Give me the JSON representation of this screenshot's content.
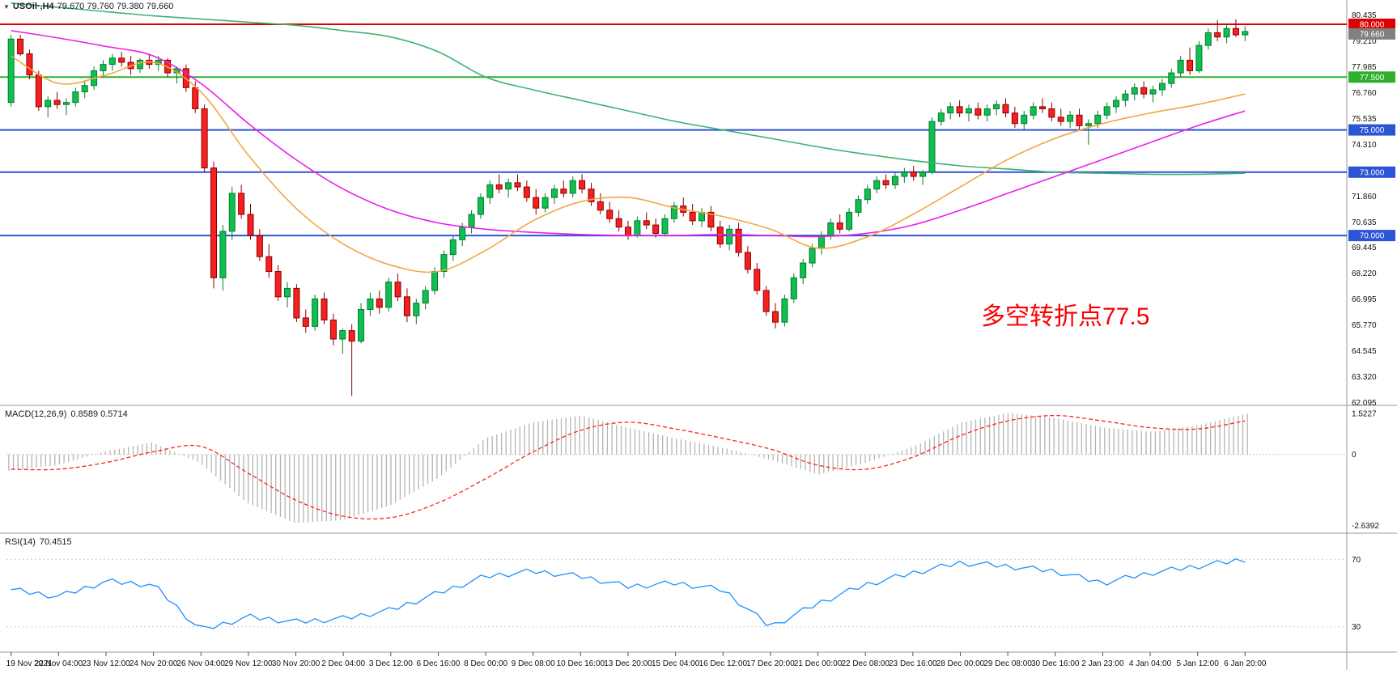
{
  "toolbar": {
    "dropdown_icon": "▼",
    "symbol": "USOil·,H4",
    "ohlc": "79.670 79.760 79.380 79.660"
  },
  "annotation": {
    "text": "多空转折点77.5",
    "color": "#fa0000"
  },
  "chart_data": {
    "type": "candlestick",
    "symbol": "USOil",
    "timeframe": "H4",
    "ylim": [
      62.0,
      81.15
    ],
    "y_ticks": [
      "80.435",
      "79.210",
      "77.985",
      "76.760",
      "75.535",
      "74.310",
      "73.085",
      "71.860",
      "70.635",
      "69.445",
      "68.220",
      "66.995",
      "65.770",
      "64.545",
      "63.320",
      "62.095"
    ],
    "x_labels": [
      "19 Nov 2021",
      "22 Nov 04:00",
      "23 Nov 12:00",
      "24 Nov 20:00",
      "26 Nov 04:00",
      "29 Nov 12:00",
      "30 Nov 20:00",
      "2 Dec 04:00",
      "3 Dec 12:00",
      "6 Dec 16:00",
      "8 Dec 00:00",
      "9 Dec 08:00",
      "10 Dec 16:00",
      "13 Dec 20:00",
      "15 Dec 04:00",
      "16 Dec 12:00",
      "17 Dec 20:00",
      "21 Dec 00:00",
      "22 Dec 08:00",
      "23 Dec 16:00",
      "28 Dec 00:00",
      "29 Dec 08:00",
      "30 Dec 16:00",
      "2 Jan 23:00",
      "4 Jan 04:00",
      "5 Jan 12:00",
      "6 Jan 20:00"
    ],
    "colors": {
      "up_body": "#0fbf4f",
      "up_edge": "#067a30",
      "down_body": "#f62020",
      "down_edge": "#8b0000",
      "ma_slow": "#3cb371",
      "ma_mid": "#ee1ce8",
      "ma_fast": "#f5a540",
      "macd_hist": "#b4b4b4",
      "macd_signal": "#ff2222",
      "rsi_line": "#1e90ff"
    },
    "horizontal_levels": [
      {
        "value": 80.0,
        "label": "80.000",
        "color": "#dd0000"
      },
      {
        "value": 77.5,
        "label": "77.500",
        "color": "#2eaf2e"
      },
      {
        "value": 75.0,
        "label": "75.000",
        "color": "#2b55d5"
      },
      {
        "value": 73.0,
        "label": "73.000",
        "color": "#2b55d5"
      },
      {
        "value": 70.0,
        "label": "70.000",
        "color": "#2b55d5"
      }
    ],
    "current_price": {
      "value": 79.66,
      "label": "79.660",
      "color": "#808080"
    },
    "candles_ohlc": [
      [
        76.3,
        79.5,
        76.1,
        79.3
      ],
      [
        79.3,
        79.5,
        78.5,
        78.6
      ],
      [
        78.6,
        78.8,
        77.4,
        77.6
      ],
      [
        77.6,
        77.8,
        75.9,
        76.1
      ],
      [
        76.1,
        76.6,
        75.6,
        76.4
      ],
      [
        76.4,
        76.8,
        76.0,
        76.2
      ],
      [
        76.2,
        76.5,
        75.7,
        76.3
      ],
      [
        76.3,
        77.0,
        76.1,
        76.8
      ],
      [
        76.8,
        77.3,
        76.5,
        77.1
      ],
      [
        77.1,
        78.0,
        76.9,
        77.8
      ],
      [
        77.8,
        78.3,
        77.5,
        78.1
      ],
      [
        78.1,
        78.6,
        77.8,
        78.4
      ],
      [
        78.4,
        78.7,
        78.0,
        78.2
      ],
      [
        78.2,
        78.5,
        77.6,
        77.9
      ],
      [
        77.9,
        78.4,
        77.7,
        78.3
      ],
      [
        78.3,
        78.6,
        77.9,
        78.1
      ],
      [
        78.1,
        78.5,
        77.8,
        78.3
      ],
      [
        78.3,
        78.4,
        77.5,
        77.7
      ],
      [
        77.7,
        78.0,
        77.2,
        77.9
      ],
      [
        77.9,
        78.1,
        76.8,
        77.0
      ],
      [
        77.0,
        77.3,
        75.8,
        76.0
      ],
      [
        76.0,
        76.2,
        73.0,
        73.2
      ],
      [
        73.2,
        73.5,
        67.5,
        68.0
      ],
      [
        68.0,
        70.5,
        67.4,
        70.2
      ],
      [
        70.2,
        72.3,
        69.8,
        72.0
      ],
      [
        72.0,
        72.4,
        70.8,
        71.0
      ],
      [
        71.0,
        71.5,
        69.8,
        70.0
      ],
      [
        70.0,
        70.3,
        68.8,
        69.0
      ],
      [
        69.0,
        69.6,
        68.0,
        68.3
      ],
      [
        68.3,
        68.6,
        66.9,
        67.1
      ],
      [
        67.1,
        67.8,
        66.6,
        67.5
      ],
      [
        67.5,
        67.7,
        65.9,
        66.1
      ],
      [
        66.1,
        66.5,
        65.4,
        65.7
      ],
      [
        65.7,
        67.2,
        65.5,
        67.0
      ],
      [
        67.0,
        67.3,
        65.8,
        66.0
      ],
      [
        66.0,
        66.3,
        64.8,
        65.1
      ],
      [
        65.1,
        65.6,
        64.4,
        65.5
      ],
      [
        65.5,
        65.8,
        62.4,
        65.0
      ],
      [
        65.0,
        66.8,
        64.9,
        66.5
      ],
      [
        66.5,
        67.3,
        66.2,
        67.0
      ],
      [
        67.0,
        67.4,
        66.3,
        66.6
      ],
      [
        66.6,
        68.0,
        66.4,
        67.8
      ],
      [
        67.8,
        68.2,
        66.9,
        67.1
      ],
      [
        67.1,
        67.5,
        65.9,
        66.2
      ],
      [
        66.2,
        67.0,
        65.8,
        66.8
      ],
      [
        66.8,
        67.6,
        66.5,
        67.4
      ],
      [
        67.4,
        68.5,
        67.2,
        68.3
      ],
      [
        68.3,
        69.3,
        68.0,
        69.1
      ],
      [
        69.1,
        70.0,
        68.8,
        69.8
      ],
      [
        69.8,
        70.6,
        69.5,
        70.4
      ],
      [
        70.4,
        71.2,
        70.1,
        71.0
      ],
      [
        71.0,
        72.0,
        70.8,
        71.8
      ],
      [
        71.8,
        72.6,
        71.5,
        72.4
      ],
      [
        72.4,
        72.9,
        72.0,
        72.2
      ],
      [
        72.2,
        72.7,
        71.8,
        72.5
      ],
      [
        72.5,
        72.9,
        72.1,
        72.3
      ],
      [
        72.3,
        72.6,
        71.6,
        71.8
      ],
      [
        71.8,
        72.2,
        71.0,
        71.3
      ],
      [
        71.3,
        72.0,
        71.1,
        71.8
      ],
      [
        71.8,
        72.4,
        71.5,
        72.2
      ],
      [
        72.2,
        72.6,
        71.8,
        72.0
      ],
      [
        72.0,
        72.8,
        71.8,
        72.6
      ],
      [
        72.6,
        72.9,
        72.0,
        72.2
      ],
      [
        72.2,
        72.5,
        71.4,
        71.6
      ],
      [
        71.6,
        72.0,
        71.0,
        71.2
      ],
      [
        71.2,
        71.6,
        70.6,
        70.8
      ],
      [
        70.8,
        71.2,
        70.2,
        70.4
      ],
      [
        70.4,
        70.7,
        69.8,
        70.0
      ],
      [
        70.0,
        70.9,
        69.9,
        70.7
      ],
      [
        70.7,
        71.1,
        70.3,
        70.5
      ],
      [
        70.5,
        70.8,
        69.9,
        70.1
      ],
      [
        70.1,
        71.0,
        70.0,
        70.8
      ],
      [
        70.8,
        71.6,
        70.6,
        71.4
      ],
      [
        71.4,
        71.8,
        70.9,
        71.1
      ],
      [
        71.1,
        71.5,
        70.5,
        70.7
      ],
      [
        70.7,
        71.3,
        70.4,
        71.1
      ],
      [
        71.1,
        71.4,
        70.2,
        70.4
      ],
      [
        70.4,
        70.7,
        69.4,
        69.6
      ],
      [
        69.6,
        70.5,
        69.3,
        70.3
      ],
      [
        70.3,
        70.6,
        69.0,
        69.2
      ],
      [
        69.2,
        69.5,
        68.2,
        68.4
      ],
      [
        68.4,
        68.7,
        67.2,
        67.4
      ],
      [
        67.4,
        67.6,
        66.2,
        66.4
      ],
      [
        66.4,
        66.8,
        65.6,
        65.9
      ],
      [
        65.9,
        67.2,
        65.7,
        67.0
      ],
      [
        67.0,
        68.2,
        66.8,
        68.0
      ],
      [
        68.0,
        68.9,
        67.7,
        68.7
      ],
      [
        68.7,
        69.6,
        68.5,
        69.4
      ],
      [
        69.4,
        70.2,
        69.1,
        70.0
      ],
      [
        70.0,
        70.8,
        69.8,
        70.6
      ],
      [
        70.6,
        71.0,
        70.1,
        70.3
      ],
      [
        70.3,
        71.3,
        70.2,
        71.1
      ],
      [
        71.1,
        71.9,
        70.9,
        71.7
      ],
      [
        71.7,
        72.4,
        71.5,
        72.2
      ],
      [
        72.2,
        72.8,
        72.0,
        72.6
      ],
      [
        72.6,
        72.9,
        72.2,
        72.4
      ],
      [
        72.4,
        73.0,
        72.2,
        72.8
      ],
      [
        72.8,
        73.2,
        72.5,
        73.0
      ],
      [
        73.0,
        73.3,
        72.6,
        72.8
      ],
      [
        72.8,
        73.1,
        72.4,
        73.0
      ],
      [
        73.0,
        75.6,
        72.9,
        75.4
      ],
      [
        75.4,
        76.0,
        75.2,
        75.8
      ],
      [
        75.8,
        76.3,
        75.5,
        76.1
      ],
      [
        76.1,
        76.4,
        75.6,
        75.8
      ],
      [
        75.8,
        76.2,
        75.4,
        76.0
      ],
      [
        76.0,
        76.3,
        75.5,
        75.7
      ],
      [
        75.7,
        76.2,
        75.4,
        76.0
      ],
      [
        76.0,
        76.4,
        75.7,
        76.2
      ],
      [
        76.2,
        76.5,
        75.6,
        75.8
      ],
      [
        75.8,
        76.1,
        75.1,
        75.3
      ],
      [
        75.3,
        75.9,
        75.0,
        75.7
      ],
      [
        75.7,
        76.3,
        75.5,
        76.1
      ],
      [
        76.1,
        76.5,
        75.8,
        76.0
      ],
      [
        76.0,
        76.3,
        75.4,
        75.6
      ],
      [
        75.6,
        76.0,
        75.2,
        75.4
      ],
      [
        75.4,
        75.9,
        75.1,
        75.7
      ],
      [
        75.7,
        76.0,
        75.0,
        75.2
      ],
      [
        75.2,
        75.5,
        74.3,
        75.3
      ],
      [
        75.3,
        75.9,
        75.1,
        75.7
      ],
      [
        75.7,
        76.3,
        75.5,
        76.1
      ],
      [
        76.1,
        76.6,
        75.8,
        76.4
      ],
      [
        76.4,
        76.9,
        76.1,
        76.7
      ],
      [
        76.7,
        77.2,
        76.4,
        77.0
      ],
      [
        77.0,
        77.3,
        76.5,
        76.7
      ],
      [
        76.7,
        77.1,
        76.3,
        76.9
      ],
      [
        76.9,
        77.4,
        76.6,
        77.2
      ],
      [
        77.2,
        77.9,
        77.0,
        77.7
      ],
      [
        77.7,
        78.5,
        77.5,
        78.3
      ],
      [
        78.3,
        78.9,
        77.6,
        77.8
      ],
      [
        77.8,
        79.2,
        77.7,
        79.0
      ],
      [
        79.0,
        79.8,
        78.8,
        79.6
      ],
      [
        79.6,
        80.2,
        79.2,
        79.4
      ],
      [
        79.4,
        80.0,
        79.1,
        79.8
      ],
      [
        79.8,
        80.24,
        79.4,
        79.5
      ],
      [
        79.5,
        79.9,
        79.2,
        79.66
      ]
    ],
    "moving_averages": [
      {
        "name": "ma-slow",
        "color": "#3cb371",
        "anchor_values": [
          81.0,
          80.8,
          80.6,
          80.4,
          80.25,
          80.1,
          79.95,
          79.7,
          79.4,
          78.7,
          77.5,
          76.9,
          76.4,
          75.9,
          75.4,
          75.0,
          74.6,
          74.2,
          73.85,
          73.55,
          73.3,
          73.15,
          73.0,
          72.95,
          72.9,
          72.9,
          72.95
        ]
      },
      {
        "name": "ma-mid",
        "color": "#ee1ce8",
        "anchor_values": [
          79.7,
          79.35,
          78.95,
          78.5,
          77.2,
          75.3,
          73.6,
          72.2,
          71.2,
          70.6,
          70.3,
          70.15,
          70.05,
          70.0,
          70.0,
          70.05,
          70.0,
          69.95,
          70.1,
          70.5,
          71.2,
          72.0,
          72.8,
          73.6,
          74.4,
          75.2,
          75.9
        ]
      },
      {
        "name": "ma-fast",
        "color": "#f5a540",
        "anchor_values": [
          78.5,
          77.2,
          77.6,
          78.2,
          76.8,
          73.8,
          71.3,
          69.6,
          68.6,
          68.3,
          69.3,
          70.7,
          71.6,
          71.8,
          71.3,
          70.9,
          70.3,
          69.4,
          69.9,
          71.0,
          72.3,
          73.6,
          74.6,
          75.3,
          75.8,
          76.2,
          76.7
        ]
      }
    ],
    "macd": {
      "title": "MACD(12,26,9)",
      "current_values": "0.8589 0.5714",
      "ylim": [
        -2.9,
        1.8
      ],
      "axis_ticks": [
        "1.5227",
        "0",
        "-2.6392"
      ],
      "hist_anchors": [
        -0.6,
        -0.4,
        0.1,
        0.45,
        -0.3,
        -1.8,
        -2.55,
        -2.45,
        -1.9,
        -0.9,
        0.6,
        1.2,
        1.45,
        1.0,
        0.6,
        0.25,
        -0.2,
        -0.75,
        -0.3,
        0.3,
        1.2,
        1.55,
        1.35,
        1.0,
        0.85,
        1.1,
        1.52
      ],
      "signal_anchors": [
        -0.55,
        -0.55,
        -0.3,
        0.1,
        0.3,
        -0.7,
        -1.7,
        -2.3,
        -2.35,
        -1.8,
        -0.9,
        0.1,
        0.9,
        1.2,
        0.95,
        0.6,
        0.2,
        -0.4,
        -0.55,
        -0.1,
        0.7,
        1.25,
        1.45,
        1.25,
        1.0,
        0.95,
        1.25
      ]
    },
    "rsi": {
      "title": "RSI(14)",
      "current_values": "70.4515",
      "ylim": [
        15,
        85
      ],
      "levels": [
        70,
        30
      ],
      "axis_ticks": [
        "70",
        "30"
      ],
      "anchor_values": [
        52,
        48,
        57,
        55,
        28,
        36,
        33,
        35,
        40,
        50,
        60,
        63,
        60,
        54,
        56,
        52,
        30,
        44,
        55,
        62,
        68,
        66,
        63,
        56,
        62,
        66,
        70
      ]
    }
  }
}
